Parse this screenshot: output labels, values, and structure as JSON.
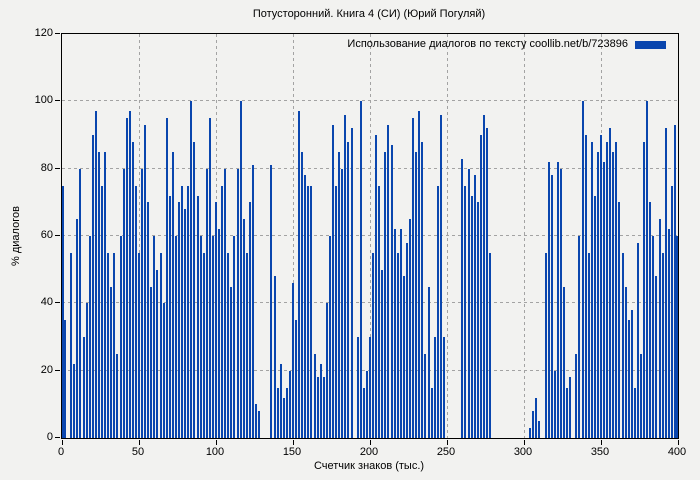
{
  "page": {
    "background": "#f2f2f0",
    "text_color": "#000000",
    "grid_color": "#a3a3a3"
  },
  "chart_data": {
    "type": "bar",
    "title": "Потусторонний. Книга 4 (СИ) (Юрий Погуляй)",
    "legend": {
      "label": "Использование диалогов по тексту coollib.net/b/723896",
      "swatch_color": "#0a46ae",
      "position": "top-right-inside"
    },
    "xlabel": "Счетчик знаков (тыс.)",
    "ylabel": "% диалогов",
    "xlim": [
      0,
      400
    ],
    "ylim": [
      0,
      120
    ],
    "x_ticks": [
      0,
      50,
      100,
      150,
      200,
      250,
      300,
      350,
      400
    ],
    "y_ticks": [
      0,
      20,
      40,
      60,
      80,
      100,
      120
    ],
    "grid": "dashed",
    "bar_color": "#0a46ae",
    "x_start": 0,
    "x_step": 2,
    "values": [
      75,
      35,
      0,
      55,
      22,
      65,
      80,
      30,
      40,
      60,
      90,
      97,
      85,
      75,
      85,
      55,
      45,
      55,
      25,
      60,
      80,
      95,
      97,
      88,
      75,
      55,
      80,
      93,
      70,
      45,
      60,
      50,
      55,
      40,
      95,
      72,
      85,
      60,
      70,
      75,
      68,
      75,
      100,
      88,
      72,
      60,
      55,
      80,
      95,
      60,
      70,
      62,
      75,
      80,
      55,
      45,
      60,
      80,
      100,
      65,
      55,
      70,
      81,
      10,
      8,
      0,
      0,
      0,
      81,
      48,
      15,
      22,
      12,
      15,
      20,
      46,
      35,
      97,
      85,
      78,
      75,
      75,
      25,
      18,
      22,
      18,
      40,
      60,
      93,
      75,
      85,
      80,
      96,
      88,
      92,
      0,
      30,
      100,
      15,
      20,
      30,
      55,
      90,
      75,
      50,
      85,
      93,
      87,
      62,
      55,
      62,
      48,
      58,
      65,
      95,
      85,
      97,
      88,
      25,
      45,
      15,
      30,
      75,
      96,
      30,
      0,
      0,
      0,
      0,
      0,
      83,
      75,
      80,
      72,
      78,
      70,
      90,
      96,
      92,
      55,
      0,
      0,
      0,
      0,
      0,
      0,
      0,
      0,
      0,
      0,
      0,
      0,
      3,
      8,
      12,
      5,
      0,
      55,
      82,
      78,
      20,
      82,
      80,
      45,
      15,
      18,
      0,
      25,
      60,
      100,
      90,
      55,
      88,
      72,
      85,
      90,
      82,
      88,
      92,
      85,
      88,
      70,
      55,
      45,
      35,
      38,
      15,
      58,
      25,
      88,
      100,
      70,
      60,
      48,
      65,
      55,
      92,
      62,
      75,
      93,
      60
    ]
  }
}
